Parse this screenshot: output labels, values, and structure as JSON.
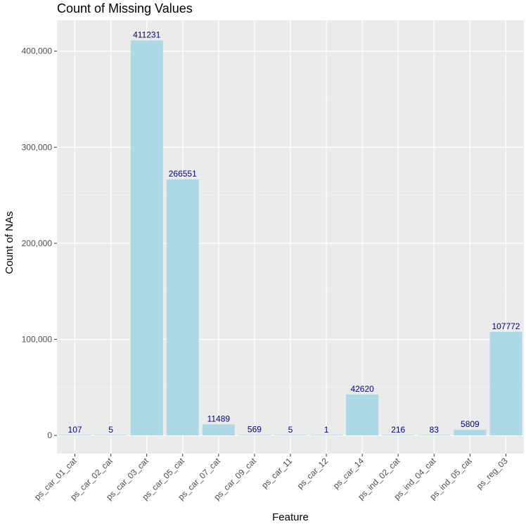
{
  "chart_data": {
    "type": "bar",
    "title": "Count of Missing Values",
    "xlabel": "Feature",
    "ylabel": "Count of NAs",
    "categories": [
      "ps_car_01_cat",
      "ps_car_02_cat",
      "ps_car_03_cat",
      "ps_car_05_cat",
      "ps_car_07_cat",
      "ps_car_09_cat",
      "ps_car_11",
      "ps_car_12",
      "ps_car_14",
      "ps_ind_02_cat",
      "ps_ind_04_cat",
      "ps_ind_05_cat",
      "ps_reg_03"
    ],
    "values": [
      107,
      5,
      411231,
      266551,
      11489,
      569,
      5,
      1,
      42620,
      216,
      83,
      5809,
      107772
    ],
    "data_labels": [
      "107",
      "5",
      "411231",
      "266551",
      "11489",
      "569",
      "5",
      "1",
      "42620",
      "216",
      "83",
      "5809",
      "107772"
    ],
    "ylim": [
      -19000,
      432000
    ],
    "yticks": [
      0,
      100000,
      200000,
      300000,
      400000
    ],
    "ytick_labels": [
      "0",
      "100,000",
      "200,000",
      "300,000",
      "400,000"
    ],
    "grid": true,
    "legend": "none",
    "colors": {
      "bar": "#add8e6",
      "panel_background": "#ebebeb",
      "grid_major": "#ffffff",
      "grid_minor": "#f5f5f5",
      "data_label": "#00008b"
    }
  }
}
